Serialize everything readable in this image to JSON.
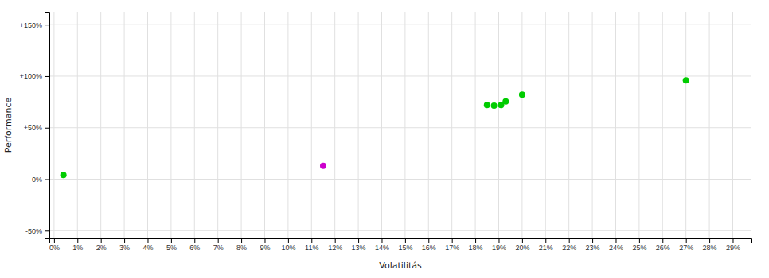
{
  "chart_data": {
    "type": "scatter",
    "xlabel": "Volatilitás",
    "ylabel": "Performance",
    "xlim": [
      -0.002,
      0.298
    ],
    "ylim": [
      -0.575,
      1.625
    ],
    "xticks": [
      {
        "value": 0,
        "label": "0%"
      },
      {
        "value": 0.01,
        "label": "1%"
      },
      {
        "value": 0.02,
        "label": "2%"
      },
      {
        "value": 0.03,
        "label": "3%"
      },
      {
        "value": 0.04,
        "label": "4%"
      },
      {
        "value": 0.05,
        "label": "5%"
      },
      {
        "value": 0.06,
        "label": "6%"
      },
      {
        "value": 0.07,
        "label": "7%"
      },
      {
        "value": 0.08,
        "label": "8%"
      },
      {
        "value": 0.09,
        "label": "9%"
      },
      {
        "value": 0.1,
        "label": "10%"
      },
      {
        "value": 0.11,
        "label": "11%"
      },
      {
        "value": 0.12,
        "label": "12%"
      },
      {
        "value": 0.13,
        "label": "13%"
      },
      {
        "value": 0.14,
        "label": "14%"
      },
      {
        "value": 0.15,
        "label": "15%"
      },
      {
        "value": 0.16,
        "label": "16%"
      },
      {
        "value": 0.17,
        "label": "17%"
      },
      {
        "value": 0.18,
        "label": "18%"
      },
      {
        "value": 0.19,
        "label": "19%"
      },
      {
        "value": 0.2,
        "label": "20%"
      },
      {
        "value": 0.21,
        "label": "21%"
      },
      {
        "value": 0.22,
        "label": "22%"
      },
      {
        "value": 0.23,
        "label": "23%"
      },
      {
        "value": 0.24,
        "label": "24%"
      },
      {
        "value": 0.25,
        "label": "25%"
      },
      {
        "value": 0.26,
        "label": "26%"
      },
      {
        "value": 0.27,
        "label": "27%"
      },
      {
        "value": 0.28,
        "label": "28%"
      },
      {
        "value": 0.29,
        "label": "29%"
      }
    ],
    "yticks": [
      {
        "value": -0.5,
        "label": "-50%"
      },
      {
        "value": 0.0,
        "label": "0%"
      },
      {
        "value": 0.5,
        "label": "+50%"
      },
      {
        "value": 1.0,
        "label": "+100%"
      },
      {
        "value": 1.5,
        "label": "+150%"
      }
    ],
    "grid": true,
    "series": [
      {
        "color": "#00cc00",
        "x": [
          0.004,
          0.185,
          0.188,
          0.191,
          0.193,
          0.2,
          0.27
        ],
        "values": [
          0.04,
          0.72,
          0.715,
          0.72,
          0.755,
          0.82,
          0.96
        ]
      },
      {
        "color": "#cc00cc",
        "x": [
          0.115
        ],
        "values": [
          0.13
        ]
      }
    ]
  }
}
